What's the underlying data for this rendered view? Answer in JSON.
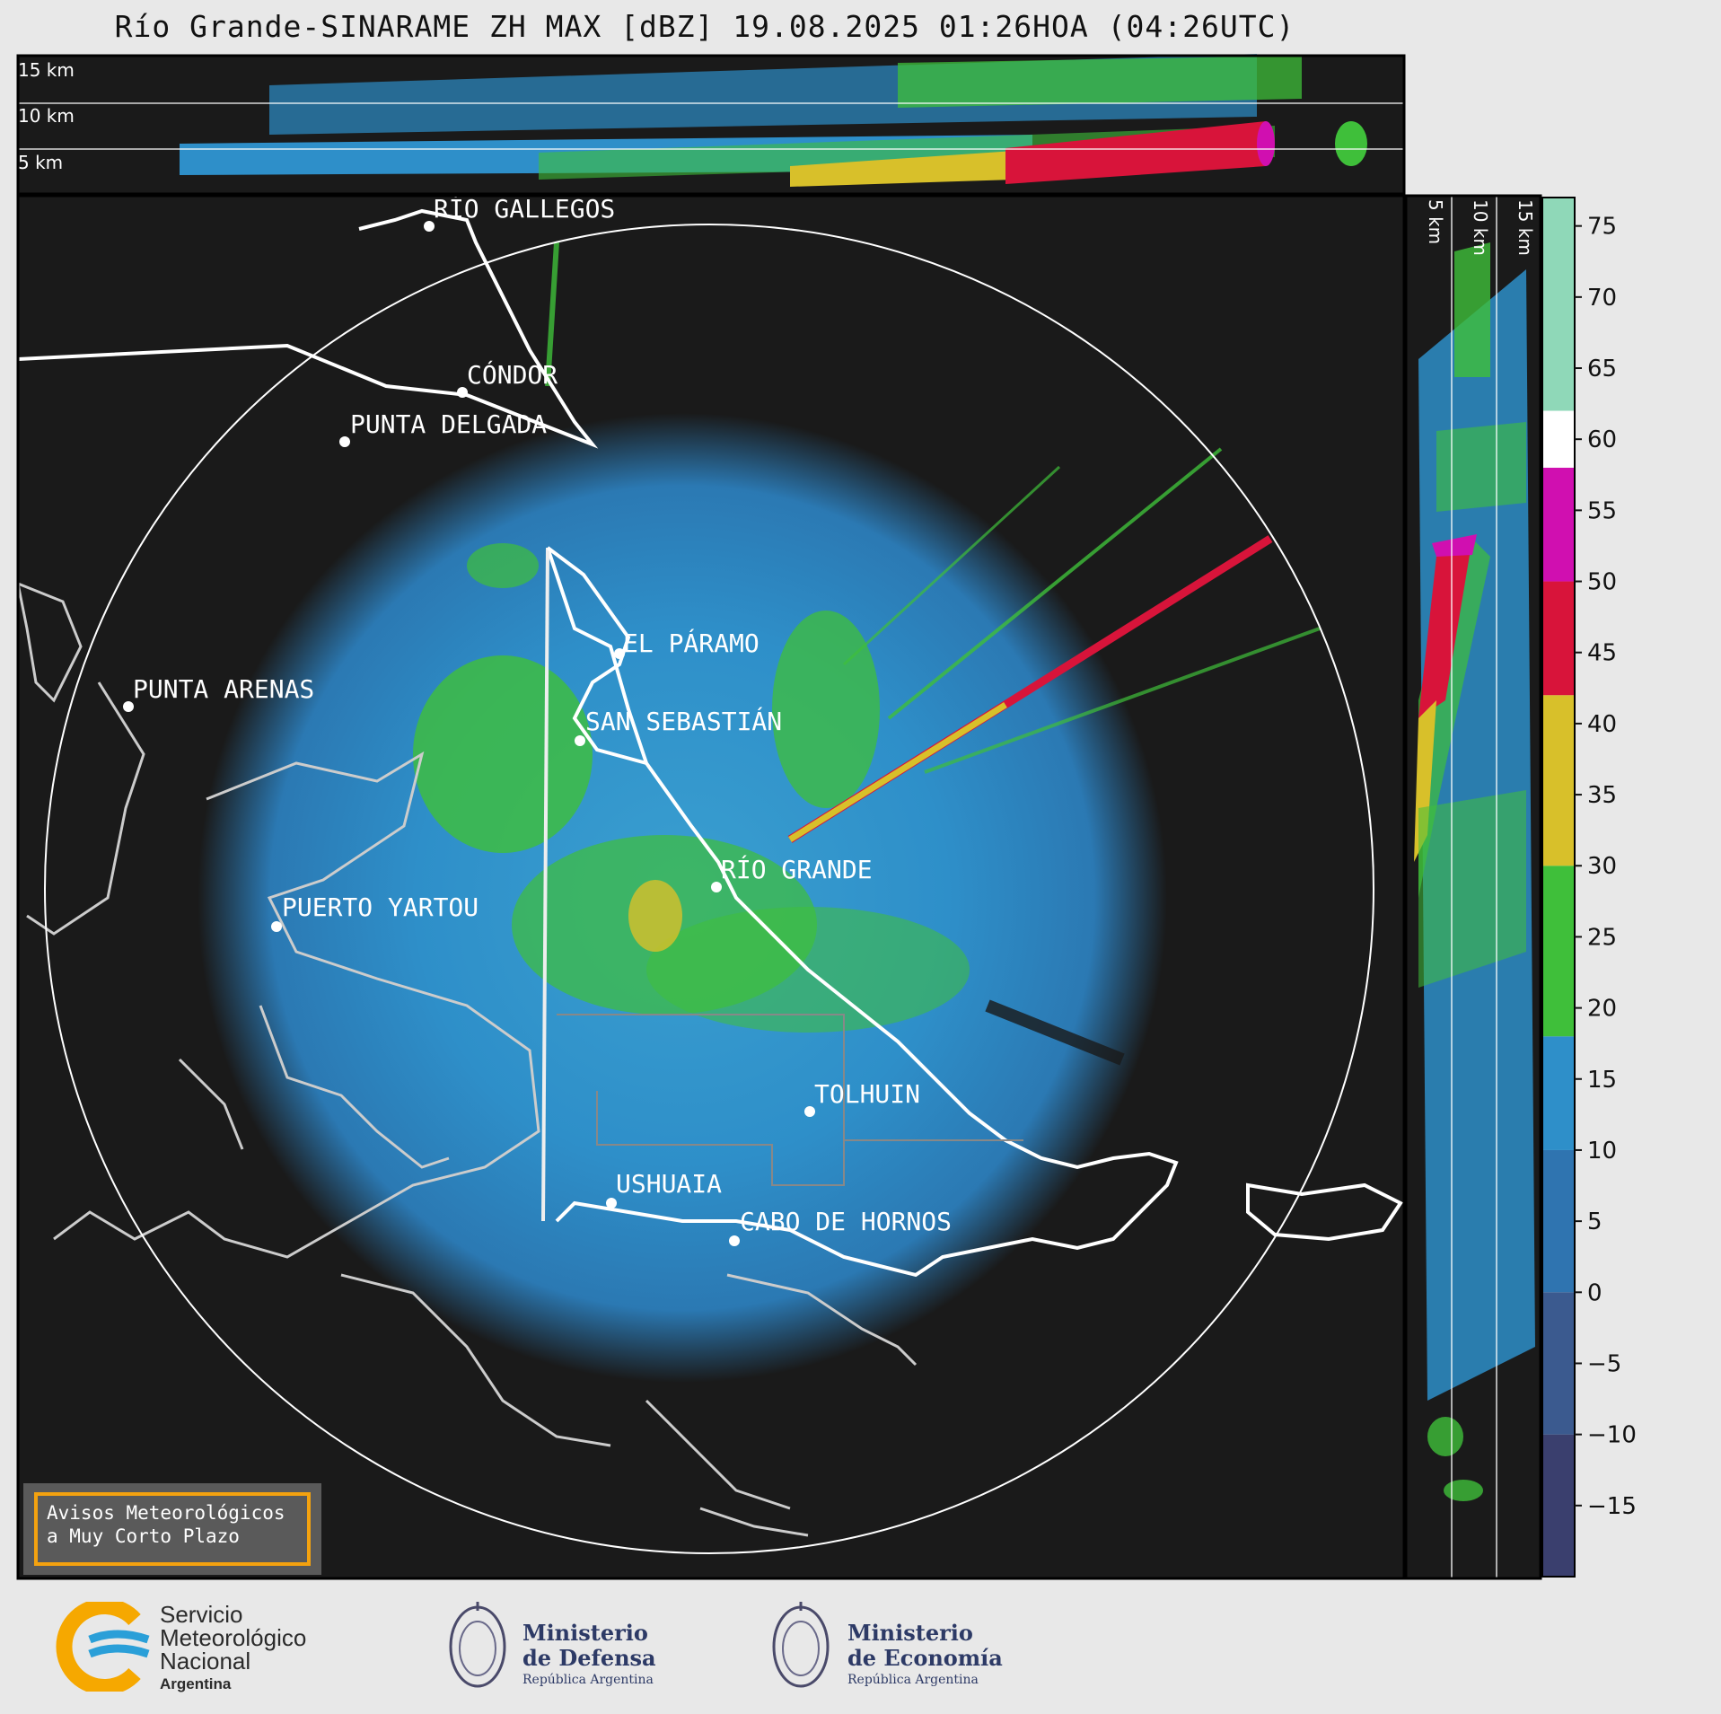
{
  "title": "Río Grande-SINARAME ZH MAX [dBZ] 19.08.2025 01:26HOA (04:26UTC)",
  "top_panel": {
    "heights": [
      "15 km",
      "10 km",
      "5 km"
    ]
  },
  "side_panel": {
    "heights": [
      "5 km",
      "10 km",
      "15 km"
    ]
  },
  "places": [
    {
      "id": "rio-gallegos",
      "name": "RÍO GALLEGOS"
    },
    {
      "id": "condor",
      "name": "CÓNDOR"
    },
    {
      "id": "punta-delgada",
      "name": "PUNTA DELGADA"
    },
    {
      "id": "el-paramo",
      "name": "EL PÁRAMO"
    },
    {
      "id": "punta-arenas",
      "name": "PUNTA ARENAS"
    },
    {
      "id": "san-sebastian",
      "name": "SAN SEBASTIÁN"
    },
    {
      "id": "rio-grande",
      "name": "RÍO GRANDE"
    },
    {
      "id": "puerto-yartou",
      "name": "PUERTO YARTOU"
    },
    {
      "id": "tolhuin",
      "name": "TOLHUIN"
    },
    {
      "id": "ushuaia",
      "name": "USHUAIA"
    },
    {
      "id": "cabo-de-hornos",
      "name": "CABO DE HORNOS"
    }
  ],
  "colorbar": {
    "unit": "dBZ",
    "ticks": [
      "75",
      "70",
      "65",
      "60",
      "55",
      "50",
      "45",
      "40",
      "35",
      "30",
      "25",
      "20",
      "15",
      "10",
      "5",
      "0",
      "−5",
      "−10",
      "−15"
    ],
    "bands": [
      {
        "from": -20,
        "to": -10,
        "color": "#3a3f6e"
      },
      {
        "from": -10,
        "to": 0,
        "color": "#3b5a8f"
      },
      {
        "from": 0,
        "to": 10,
        "color": "#2f74b0"
      },
      {
        "from": 10,
        "to": 18,
        "color": "#2e8fc9"
      },
      {
        "from": 18,
        "to": 30,
        "color": "#3fbf3a"
      },
      {
        "from": 30,
        "to": 42,
        "color": "#d8c02a"
      },
      {
        "from": 42,
        "to": 50,
        "color": "#d8143a"
      },
      {
        "from": 50,
        "to": 58,
        "color": "#d00fb0"
      },
      {
        "from": 58,
        "to": 62,
        "color": "#ffffff"
      },
      {
        "from": 62,
        "to": 77,
        "color": "#8fd8b8"
      }
    ]
  },
  "notice": {
    "line1": "Avisos Meteorológicos",
    "line2": "a Muy Corto Plazo"
  },
  "logos": {
    "smn": {
      "line1": "Servicio",
      "line2": "Meteorológico",
      "line3": "Nacional",
      "line4": "Argentina"
    },
    "defensa": {
      "line1": "Ministerio",
      "line2": "de Defensa",
      "line3": "República Argentina"
    },
    "economia": {
      "line1": "Ministerio",
      "line2": "de Economía",
      "line3": "República Argentina"
    }
  }
}
